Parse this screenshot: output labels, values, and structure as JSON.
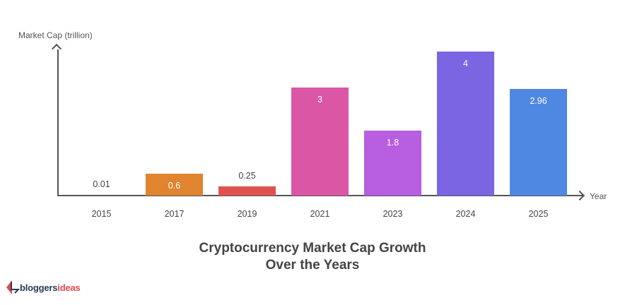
{
  "chart_data": {
    "type": "bar",
    "title": "Cryptocurrency Market Cap Growth Over the Years",
    "title_lines": [
      "Cryptocurrency Market Cap Growth",
      "Over the Years"
    ],
    "xlabel": "Year",
    "ylabel": "Market Cap (trillion)",
    "categories": [
      "2015",
      "2017",
      "2019",
      "2021",
      "2023",
      "2024",
      "2025"
    ],
    "values": [
      0.01,
      0.6,
      0.25,
      3,
      1.8,
      4,
      2.96
    ],
    "value_labels": [
      "0.01",
      "0.6",
      "0.25",
      "3",
      "1.8",
      "4",
      "2.96"
    ],
    "colors": [
      "#f0f0f0",
      "#e0842f",
      "#e05252",
      "#db57a6",
      "#b85ee0",
      "#7b65e3",
      "#4f88e3"
    ],
    "ylim": [
      0,
      4
    ],
    "grid": false,
    "legend": "none"
  },
  "branding": {
    "logo_part1": "bloggers",
    "logo_part2": "ideas"
  }
}
